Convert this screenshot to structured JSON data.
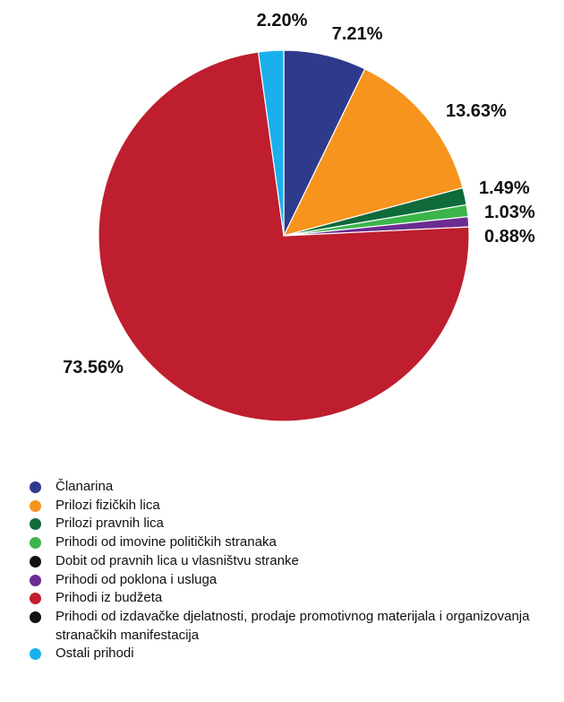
{
  "chart_data": {
    "type": "pie",
    "categories": [
      "Članarina",
      "Prilozi fizičkih lica",
      "Prilozi pravnih lica",
      "Prihodi od imovine političkih stranaka",
      "Dobit od pravnih lica u vlasništvu stranke",
      "Prihodi od poklona i usluga",
      "Prihodi iz budžeta",
      "Prihodi od izdavačke djelatnosti, prodaje promotivnog materijala i organizovanja stranačkih manifestacija",
      "Ostali prihodi"
    ],
    "values": [
      7.21,
      13.63,
      1.49,
      1.03,
      0,
      0.88,
      73.56,
      0,
      2.2
    ],
    "value_labels": [
      "7.21%",
      "13.63%",
      "1.49%",
      "1.03%",
      "",
      "0.88%",
      "73.56%",
      "",
      "2.20%"
    ],
    "colors": [
      "#2e3a8c",
      "#f7941d",
      "#0f6b3a",
      "#3bb54a",
      "#111111",
      "#6a2c91",
      "#be1e2d",
      "#111111",
      "#1ab0ec"
    ],
    "legend_position": "bottom-left"
  }
}
